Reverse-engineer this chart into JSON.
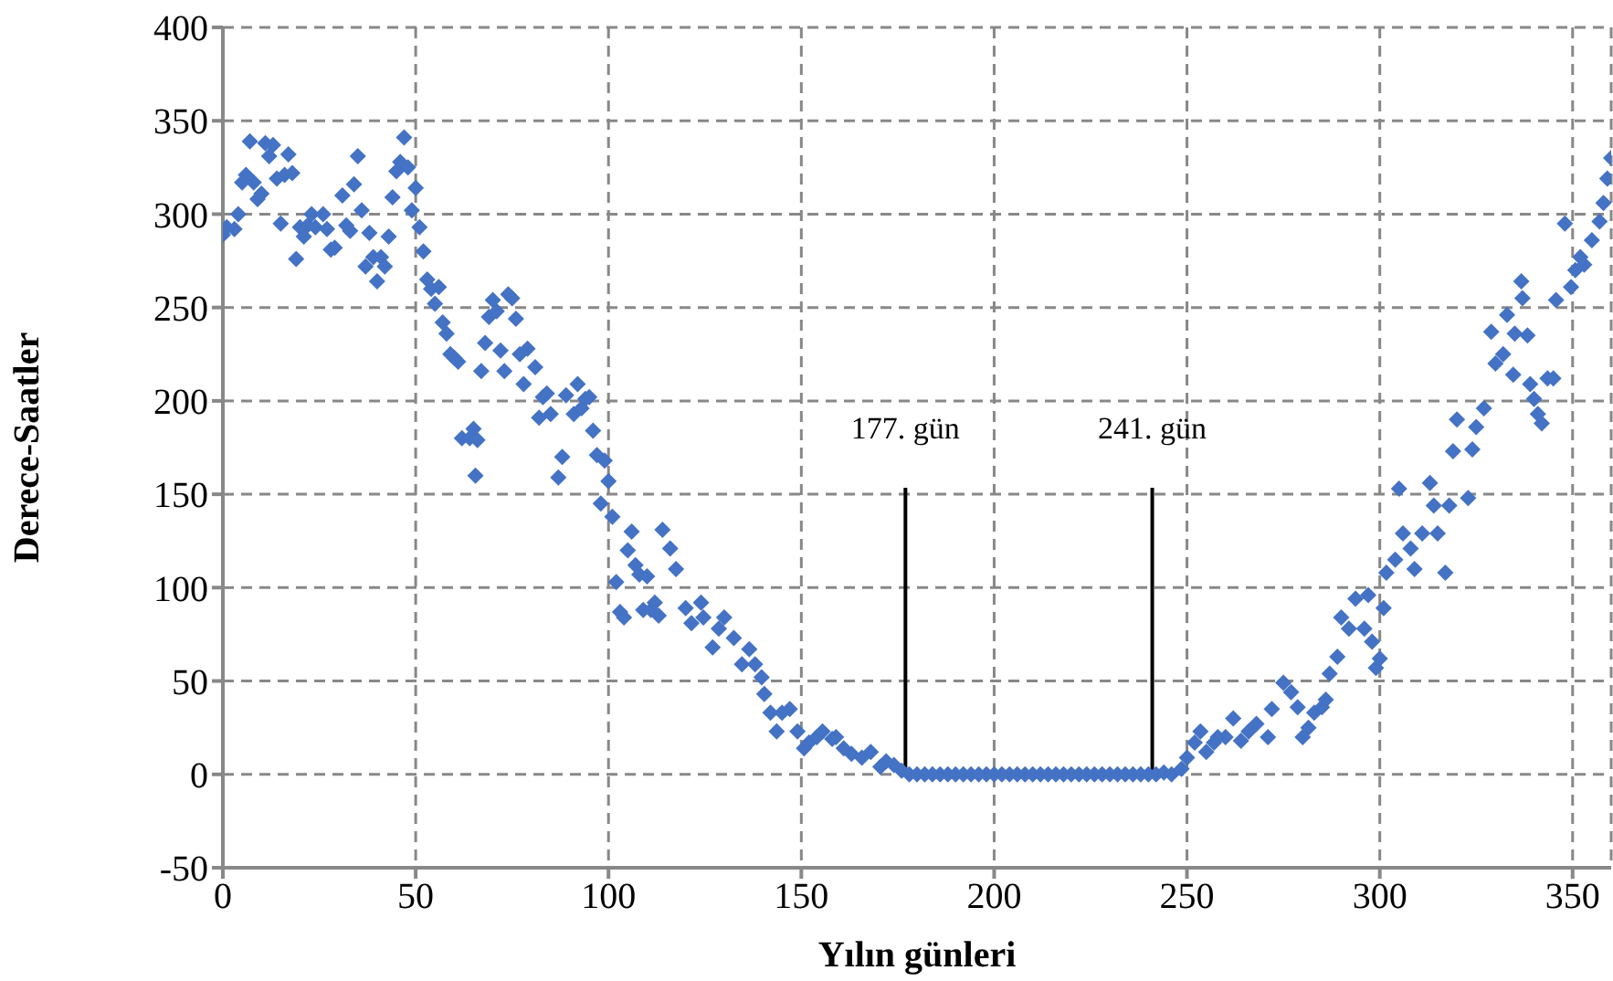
{
  "chart_data": {
    "type": "scatter",
    "xlabel": "Yılın günleri",
    "ylabel": "Derece-Saatler",
    "x": [
      0,
      1,
      3,
      4,
      5,
      6,
      7,
      8,
      9,
      10,
      11,
      12,
      13,
      14,
      15,
      16,
      17,
      18,
      19,
      20,
      21,
      22,
      23,
      24,
      26,
      27,
      28,
      29,
      31,
      32,
      33,
      34,
      35,
      36,
      37,
      38,
      39,
      40,
      41,
      42,
      43,
      44,
      45,
      46,
      47,
      48,
      49,
      50,
      51,
      52,
      53,
      54,
      55,
      56,
      57,
      58,
      59,
      60,
      61,
      62,
      64,
      65,
      65.5,
      66,
      67,
      68,
      69,
      70,
      71,
      72,
      73,
      74,
      75,
      76,
      77,
      78,
      79,
      81,
      82,
      83,
      84,
      85,
      87,
      88,
      89,
      91,
      92,
      93,
      94,
      95,
      96,
      97,
      98,
      99,
      100,
      101,
      102,
      103,
      104,
      105,
      106,
      107,
      108,
      109,
      110,
      111,
      112,
      113,
      114,
      116,
      117.5,
      120,
      121.5,
      124,
      124.6,
      127,
      128.6,
      130,
      132.5,
      134.6,
      136.5,
      138,
      139.7,
      140.4,
      142,
      143.6,
      145,
      147,
      149,
      150.7,
      152,
      154,
      155.5,
      158,
      159,
      161,
      163,
      165.7,
      168,
      170.5,
      172,
      174,
      176,
      178,
      180,
      182,
      184,
      186,
      188,
      190,
      192,
      194,
      196,
      198,
      200,
      202,
      204,
      206,
      208,
      210,
      212,
      214,
      216,
      218,
      220,
      222,
      224,
      226,
      228,
      230,
      232,
      234,
      236,
      238,
      240,
      242,
      244,
      246,
      248.6,
      250,
      252,
      253.5,
      255,
      257,
      258,
      260,
      262,
      264,
      266,
      268,
      271,
      272,
      275,
      277,
      278.7,
      280,
      281.5,
      283,
      285,
      286,
      287,
      289,
      290,
      292,
      293.7,
      296,
      297,
      298,
      299,
      300,
      301,
      301.7,
      304,
      305,
      306,
      308,
      309,
      311,
      313,
      314,
      315,
      317,
      318,
      319,
      320,
      322.9,
      324,
      325,
      327,
      328.9,
      330,
      332,
      333,
      334.6,
      335,
      336.7,
      337,
      338.3,
      339,
      340,
      341,
      342,
      343.5,
      345,
      345.7,
      348,
      349.6,
      350.7,
      352,
      353,
      355,
      357,
      358,
      359,
      360
    ],
    "series": [
      {
        "color": "#4472c4",
        "values": [
          289,
          293,
          292,
          300,
          317,
          321,
          339,
          317,
          308,
          311,
          338,
          331,
          337,
          319,
          295,
          321,
          332,
          322,
          276,
          293,
          288,
          294,
          300,
          293,
          300,
          292,
          281,
          282,
          310,
          294,
          291,
          316,
          331,
          302,
          272,
          290,
          277,
          264,
          277,
          272,
          288,
          309,
          323,
          328,
          341,
          325,
          302,
          314,
          293,
          280,
          265,
          260,
          252,
          261,
          242,
          236,
          225,
          223,
          221,
          180,
          180,
          185,
          160,
          179,
          216,
          231,
          245,
          254,
          248,
          227,
          216,
          257,
          255,
          244,
          225,
          209,
          228,
          218,
          191,
          202,
          204,
          193,
          159,
          170,
          203,
          193,
          209,
          196,
          201,
          202,
          184,
          171,
          145,
          168,
          157,
          138,
          103,
          87,
          84,
          120,
          130,
          112,
          107,
          88,
          106,
          88,
          92,
          85,
          131,
          121,
          110,
          89,
          81,
          92,
          84,
          68,
          78,
          84,
          73,
          59,
          67,
          59,
          52,
          43,
          33,
          23,
          33,
          35,
          23,
          14,
          17,
          20,
          23,
          19,
          20,
          14,
          11,
          9,
          12,
          4,
          7,
          5,
          2,
          0,
          0,
          0,
          0,
          0,
          0,
          0,
          0,
          0,
          0,
          0,
          0,
          0,
          0,
          0,
          0,
          0,
          0,
          0,
          0,
          0,
          0,
          0,
          0,
          0,
          0,
          0,
          0,
          0,
          0,
          0,
          0,
          0,
          1,
          0,
          3,
          9,
          17,
          23,
          12,
          17,
          20,
          20,
          30,
          18,
          23,
          27,
          20,
          35,
          49,
          44,
          36,
          20,
          25,
          33,
          36,
          40,
          54,
          63,
          84,
          78,
          94,
          78,
          96,
          71,
          57,
          62,
          89,
          108,
          115,
          153,
          129,
          121,
          110,
          129,
          156,
          144,
          129,
          108,
          144,
          173,
          190,
          148,
          174,
          186,
          196,
          237,
          220,
          225,
          246,
          214,
          236,
          264,
          255,
          235,
          209,
          201,
          193,
          188,
          212,
          212,
          254,
          295,
          261,
          270,
          277,
          273,
          286,
          296,
          306,
          319,
          330
        ]
      }
    ],
    "xlim": [
      0,
      360
    ],
    "xticks": [
      0,
      50,
      100,
      150,
      200,
      250,
      300,
      350
    ],
    "ylim": [
      -50,
      400
    ],
    "yticks": [
      -50,
      0,
      50,
      100,
      150,
      200,
      250,
      300,
      350,
      400
    ],
    "grid": true,
    "marker": "diamond",
    "ref_lines": [
      {
        "axis": "x",
        "value": 177,
        "label": "177. gün",
        "color": "#000000"
      },
      {
        "axis": "x",
        "value": 241,
        "label": "241. gün",
        "color": "#000000"
      }
    ]
  }
}
